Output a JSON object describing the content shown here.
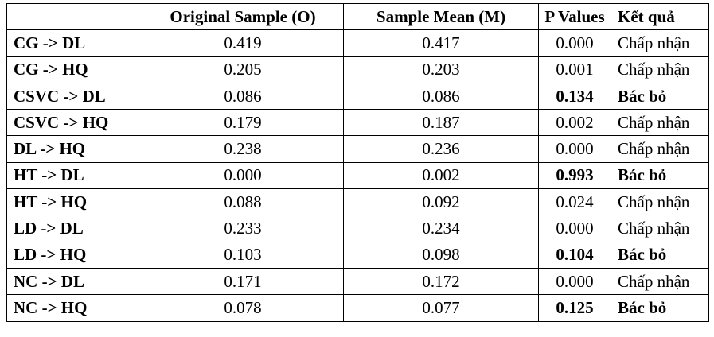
{
  "headers": [
    "",
    "Original Sample (O)",
    "Sample Mean (M)",
    "P Values",
    "Kết quả"
  ],
  "rows": [
    {
      "path": "CG -> DL",
      "original": "0.419",
      "mean": "0.417",
      "p": "0.000",
      "result": "Chấp nhận",
      "rejected": false
    },
    {
      "path": "CG -> HQ",
      "original": "0.205",
      "mean": "0.203",
      "p": "0.001",
      "result": "Chấp nhận",
      "rejected": false
    },
    {
      "path": "CSVC -> DL",
      "original": "0.086",
      "mean": "0.086",
      "p": "0.134",
      "result": "Bác bỏ",
      "rejected": true
    },
    {
      "path": "CSVC -> HQ",
      "original": "0.179",
      "mean": "0.187",
      "p": "0.002",
      "result": "Chấp nhận",
      "rejected": false
    },
    {
      "path": "DL -> HQ",
      "original": "0.238",
      "mean": "0.236",
      "p": "0.000",
      "result": "Chấp nhận",
      "rejected": false
    },
    {
      "path": "HT -> DL",
      "original": "0.000",
      "mean": "0.002",
      "p": "0.993",
      "result": "Bác bỏ",
      "rejected": true
    },
    {
      "path": "HT -> HQ",
      "original": "0.088",
      "mean": "0.092",
      "p": "0.024",
      "result": "Chấp nhận",
      "rejected": false
    },
    {
      "path": "LD -> DL",
      "original": "0.233",
      "mean": "0.234",
      "p": "0.000",
      "result": "Chấp nhận",
      "rejected": false
    },
    {
      "path": "LD -> HQ",
      "original": "0.103",
      "mean": "0.098",
      "p": "0.104",
      "result": "Bác bỏ",
      "rejected": true
    },
    {
      "path": "NC -> DL",
      "original": "0.171",
      "mean": "0.172",
      "p": "0.000",
      "result": "Chấp nhận",
      "rejected": false
    },
    {
      "path": "NC -> HQ",
      "original": "0.078",
      "mean": "0.077",
      "p": "0.125",
      "result": "Bác bỏ",
      "rejected": true
    }
  ]
}
